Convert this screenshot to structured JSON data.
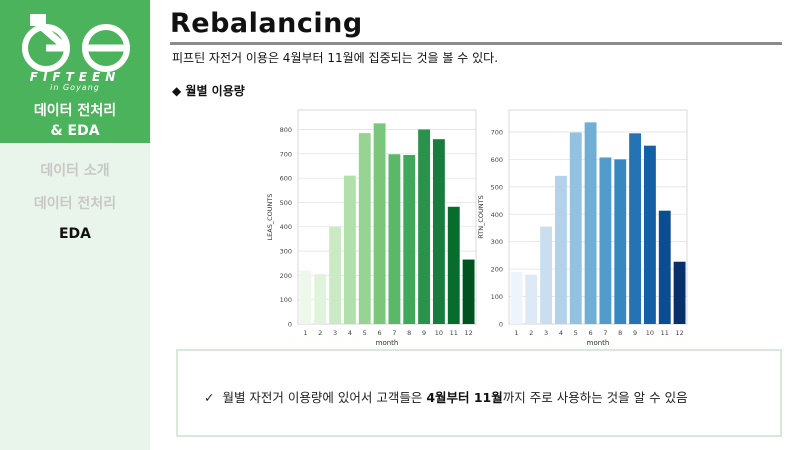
{
  "sidebar": {
    "brand": "FIFTEEN",
    "brand_sub": "in Goyang",
    "section_title_line1": "데이터 전처리",
    "section_title_line2": "& EDA",
    "nav_items": [
      {
        "label": "데이터 소개",
        "state": "dim"
      },
      {
        "label": "데이터 전처리",
        "state": "dim"
      },
      {
        "label": "EDA",
        "state": "active"
      }
    ]
  },
  "header": {
    "title": "Rebalancing",
    "subtitle": "피프틴 자전거 이용은 4월부터 11월에 집중되는 것을 볼 수 있다."
  },
  "section": {
    "bullet": "◆ 월별 이용량"
  },
  "chart_data": [
    {
      "type": "bar",
      "categories": [
        "1",
        "2",
        "3",
        "4",
        "5",
        "6",
        "7",
        "8",
        "9",
        "10",
        "11",
        "12"
      ],
      "values": [
        220,
        205,
        400,
        610,
        785,
        825,
        698,
        695,
        800,
        760,
        482,
        265
      ],
      "xlabel": "month",
      "ylabel": "LEAS_COUNTS",
      "ylim": [
        0,
        880
      ],
      "yticks": [
        0,
        100,
        200,
        300,
        400,
        500,
        600,
        700,
        800
      ],
      "palette": "Greens",
      "colors": [
        "#eef8ea",
        "#e0f3db",
        "#caeac3",
        "#b2e0ab",
        "#97d494",
        "#7ac77b",
        "#5bb86a",
        "#3fa85b",
        "#2a924a",
        "#187c3d",
        "#086d2c",
        "#00521f"
      ]
    },
    {
      "type": "bar",
      "categories": [
        "1",
        "2",
        "3",
        "4",
        "5",
        "6",
        "7",
        "8",
        "9",
        "10",
        "11",
        "12"
      ],
      "values": [
        190,
        180,
        355,
        540,
        698,
        735,
        607,
        600,
        695,
        650,
        413,
        227
      ],
      "xlabel": "month",
      "ylabel": "RTN_COUNTS",
      "ylim": [
        0,
        780
      ],
      "yticks": [
        0,
        100,
        200,
        300,
        400,
        500,
        600,
        700
      ],
      "palette": "Blues",
      "colors": [
        "#eef4fb",
        "#dde9f6",
        "#cadef0",
        "#b1d2e8",
        "#92c2df",
        "#70aed6",
        "#529bcb",
        "#3987c0",
        "#2473b4",
        "#1460a6",
        "#0b4d92",
        "#08306b"
      ]
    }
  ],
  "callout": {
    "check": "✓",
    "text_before": "월별 자전거 이용량에 있어서 고객들은 ",
    "text_bold": "4월부터 11월",
    "text_after": "까지 주로 사용하는 것을 알 수 있음"
  }
}
